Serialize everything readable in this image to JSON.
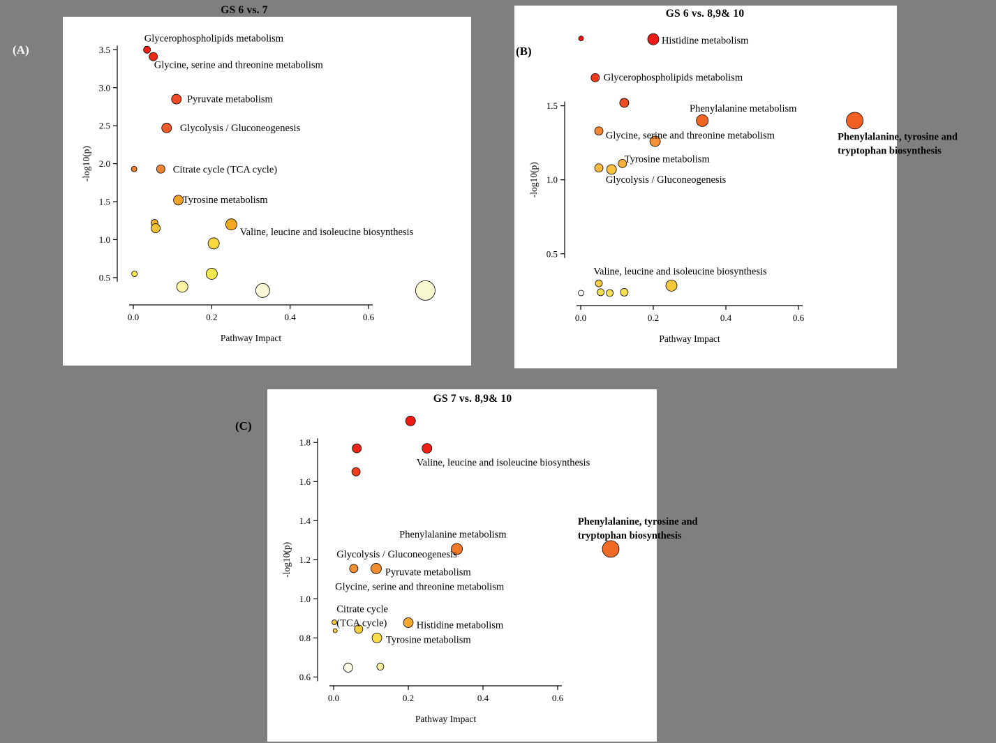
{
  "page": {
    "background": "#7f7f7f",
    "panel_background": "#ffffff",
    "point_stroke": "#000000"
  },
  "panel_labels": [
    {
      "text": "(A)",
      "color": "#ffffff"
    },
    {
      "text": "(B)",
      "color": "#000000"
    },
    {
      "text": "(C)",
      "color": "#000000"
    }
  ],
  "chart_data": [
    {
      "type": "scatter",
      "title": "GS 6 vs. 7",
      "xlabel": "Pathway Impact",
      "ylabel": "-log10(p)",
      "xlim": [
        0,
        0.6
      ],
      "ylim": [
        0.15,
        3.65
      ],
      "grid": false,
      "legend": "none",
      "xticks": {
        "values": [
          0.0,
          0.2,
          0.4,
          0.6
        ],
        "labels": [
          "0.0",
          "0.2",
          "0.4",
          "0.6"
        ]
      },
      "yticks": {
        "values": [
          0.5,
          1.0,
          1.5,
          2.0,
          2.5,
          3.0,
          3.5
        ],
        "labels": [
          "0.5",
          "1.0",
          "1.5",
          "2.0",
          "2.5",
          "3.0",
          "3.5"
        ]
      },
      "points": [
        {
          "x": 0.035,
          "y": 3.5,
          "r": 5,
          "color": "#ee2017",
          "label": "Glycerophospholipids metabolism"
        },
        {
          "x": 0.051,
          "y": 3.41,
          "r": 6,
          "color": "#ed2a14",
          "label": "Glycine, serine and threonine metabolism"
        },
        {
          "x": 0.11,
          "y": 2.85,
          "r": 7,
          "color": "#f04a24",
          "label": "Pyruvate metabolism"
        },
        {
          "x": 0.085,
          "y": 2.47,
          "r": 7,
          "color": "#f15c2a",
          "label": "Glycolysis / Gluconeogenesis"
        },
        {
          "x": 0.002,
          "y": 1.93,
          "r": 4,
          "color": "#ef8030",
          "label": ""
        },
        {
          "x": 0.07,
          "y": 1.93,
          "r": 6,
          "color": "#f08432",
          "label": "Citrate cycle (TCA cycle)"
        },
        {
          "x": 0.115,
          "y": 1.52,
          "r": 7,
          "color": "#f5a228",
          "label": "Tyrosine metabolism"
        },
        {
          "x": 0.054,
          "y": 1.22,
          "r": 5,
          "color": "#f4ae2a",
          "label": ""
        },
        {
          "x": 0.057,
          "y": 1.15,
          "r": 6.5,
          "color": "#f7c135",
          "label": ""
        },
        {
          "x": 0.25,
          "y": 1.2,
          "r": 8,
          "color": "#f2a81f",
          "label": "Valine, leucine and isoleucine biosynthesis"
        },
        {
          "x": 0.205,
          "y": 0.95,
          "r": 8,
          "color": "#f8d83c",
          "label": ""
        },
        {
          "x": 0.003,
          "y": 0.55,
          "r": 4,
          "color": "#f9e34a",
          "label": ""
        },
        {
          "x": 0.2,
          "y": 0.55,
          "r": 8,
          "color": "#f9e850",
          "label": ""
        },
        {
          "x": 0.125,
          "y": 0.38,
          "r": 8,
          "color": "#fdf3a5",
          "label": ""
        },
        {
          "x": 0.33,
          "y": 0.33,
          "r": 10,
          "color": "#fbf8d5",
          "label": ""
        },
        {
          "x": 0.745,
          "y": 0.33,
          "r": 14,
          "color": "#f7f7d0",
          "label": ""
        }
      ],
      "annotations": [
        {
          "lines": [
            "Glycerophospholipids metabolism"
          ],
          "x": 0.028,
          "y": 3.61
        },
        {
          "lines": [
            "Glycine, serine and threonine metabolism"
          ],
          "x": 0.053,
          "y": 3.26
        },
        {
          "lines": [
            "Pyruvate metabolism"
          ],
          "x": 0.137,
          "y": 2.81
        },
        {
          "lines": [
            "Glycolysis / Gluconeogenesis"
          ],
          "x": 0.119,
          "y": 2.43
        },
        {
          "lines": [
            "Citrate cycle (TCA cycle)"
          ],
          "x": 0.101,
          "y": 1.88
        },
        {
          "lines": [
            "Tyrosine metabolism"
          ],
          "x": 0.126,
          "y": 1.48
        },
        {
          "lines": [
            "Valine, leucine and isoleucine biosynthesis"
          ],
          "x": 0.272,
          "y": 1.06
        }
      ]
    },
    {
      "type": "scatter",
      "title": "GS 6 vs. 8,9& 10",
      "xlabel": "Pathway Impact",
      "ylabel": "-log10(p)",
      "xlim": [
        0,
        0.6
      ],
      "ylim": [
        0.15,
        2.05
      ],
      "grid": false,
      "legend": "none",
      "xticks": {
        "values": [
          0.0,
          0.2,
          0.4,
          0.6
        ],
        "labels": [
          "0.0",
          "0.2",
          "0.4",
          "0.6"
        ]
      },
      "yticks": {
        "values": [
          0.5,
          1.0,
          1.5
        ],
        "labels": [
          "0.5",
          "1.0",
          "1.5"
        ]
      },
      "points": [
        {
          "x": 0.001,
          "y": 1.955,
          "r": 3.5,
          "color": "#e81613",
          "label": ""
        },
        {
          "x": 0.2,
          "y": 1.95,
          "r": 8,
          "color": "#ea1c15",
          "label": "Histidine metabolism"
        },
        {
          "x": 0.04,
          "y": 1.69,
          "r": 6,
          "color": "#ee3a1c",
          "label": "Glycerophospholipids metabolism"
        },
        {
          "x": 0.12,
          "y": 1.52,
          "r": 6.5,
          "color": "#ef4c22",
          "label": ""
        },
        {
          "x": 0.335,
          "y": 1.4,
          "r": 8.5,
          "color": "#f26522",
          "label": "Phenylalanine metabolism"
        },
        {
          "x": 0.755,
          "y": 1.4,
          "r": 12,
          "color": "#f16021",
          "label": "Phenylalanine, tyrosine and tryptophan biosynthesis"
        },
        {
          "x": 0.05,
          "y": 1.33,
          "r": 6,
          "color": "#f28432",
          "label": ""
        },
        {
          "x": 0.205,
          "y": 1.26,
          "r": 7.5,
          "color": "#f29138",
          "label": "Glycine, serine and threonine metabolism"
        },
        {
          "x": 0.115,
          "y": 1.11,
          "r": 6,
          "color": "#f6b13a",
          "label": "Tyrosine metabolism"
        },
        {
          "x": 0.085,
          "y": 1.07,
          "r": 7,
          "color": "#f8bf40",
          "label": "Glycolysis / Gluconeogenesis"
        },
        {
          "x": 0.05,
          "y": 1.08,
          "r": 6,
          "color": "#f7ba3e",
          "label": ""
        },
        {
          "x": 0.05,
          "y": 0.3,
          "r": 5,
          "color": "#f7cd42",
          "label": ""
        },
        {
          "x": 0.25,
          "y": 0.285,
          "r": 8,
          "color": "#f6c93a",
          "label": "Valine, leucine and isoleucine biosynthesis"
        },
        {
          "x": 0.001,
          "y": 0.235,
          "r": 4,
          "color": "#ffffff",
          "label": ""
        },
        {
          "x": 0.055,
          "y": 0.24,
          "r": 5,
          "color": "#f9df52",
          "label": ""
        },
        {
          "x": 0.08,
          "y": 0.235,
          "r": 5,
          "color": "#f9e055",
          "label": ""
        },
        {
          "x": 0.12,
          "y": 0.24,
          "r": 5.5,
          "color": "#f9e052",
          "label": ""
        }
      ],
      "annotations": [
        {
          "lines": [
            "Histidine metabolism"
          ],
          "x": 0.223,
          "y": 1.92
        },
        {
          "lines": [
            "Glycerophospholipids metabolism"
          ],
          "x": 0.063,
          "y": 1.67
        },
        {
          "lines": [
            "Phenylalanine metabolism"
          ],
          "x": 0.3,
          "y": 1.46
        },
        {
          "lines": [
            "Glycine, serine and threonine metabolism"
          ],
          "x": 0.069,
          "y": 1.28
        },
        {
          "lines": [
            "Tyrosine metabolism"
          ],
          "x": 0.121,
          "y": 1.12
        },
        {
          "lines": [
            "Glycolysis / Gluconeogenesis"
          ],
          "x": 0.069,
          "y": 0.98
        },
        {
          "lines": [
            "Valine, leucine and isoleucine biosynthesis"
          ],
          "x": 0.035,
          "y": 0.36
        },
        {
          "lines": [
            "Phenylalanine, tyrosine and",
            "tryptophan biosynthesis"
          ],
          "x": 0.708,
          "y": 1.27,
          "bold": true
        }
      ]
    },
    {
      "type": "scatter",
      "title": "GS 7 vs. 8,9& 10",
      "xlabel": "Pathway Impact",
      "ylabel": "-log10(p)",
      "xlim": [
        0,
        0.6
      ],
      "ylim": [
        0.555,
        1.99
      ],
      "grid": false,
      "legend": "none",
      "xticks": {
        "values": [
          0.0,
          0.2,
          0.4,
          0.6
        ],
        "labels": [
          "0.0",
          "0.2",
          "0.4",
          "0.6"
        ]
      },
      "yticks": {
        "values": [
          0.6,
          0.8,
          1.0,
          1.2,
          1.4,
          1.6,
          1.8
        ],
        "labels": [
          "0.6",
          "0.8",
          "1.0",
          "1.2",
          "1.4",
          "1.6",
          "1.8"
        ]
      },
      "points": [
        {
          "x": 0.206,
          "y": 1.91,
          "r": 7,
          "color": "#ea1b14",
          "label": ""
        },
        {
          "x": 0.062,
          "y": 1.77,
          "r": 6.5,
          "color": "#ec2417",
          "label": ""
        },
        {
          "x": 0.25,
          "y": 1.77,
          "r": 7,
          "color": "#ec2014",
          "label": "Valine, leucine and isoleucine biosynthesis"
        },
        {
          "x": 0.06,
          "y": 1.65,
          "r": 6,
          "color": "#ee3b1e",
          "label": ""
        },
        {
          "x": 0.33,
          "y": 1.255,
          "r": 8,
          "color": "#f07828",
          "label": "Phenylalanine metabolism"
        },
        {
          "x": 0.742,
          "y": 1.255,
          "r": 12,
          "color": "#ef6a24",
          "label": "Phenylalanine, tyrosine and tryptophan biosynthesis"
        },
        {
          "x": 0.054,
          "y": 1.155,
          "r": 6,
          "color": "#f29134",
          "label": "Glycolysis / Gluconeogenesis"
        },
        {
          "x": 0.114,
          "y": 1.155,
          "r": 7.5,
          "color": "#f28c30",
          "label": "Pyruvate metabolism"
        },
        {
          "x": 0.002,
          "y": 0.88,
          "r": 3.5,
          "color": "#f6c33c",
          "label": "Citrate cycle (TCA cycle)"
        },
        {
          "x": 0.2,
          "y": 0.878,
          "r": 7,
          "color": "#f4a830",
          "label": "Histidine metabolism"
        },
        {
          "x": 0.067,
          "y": 0.845,
          "r": 6,
          "color": "#f7cb40",
          "label": ""
        },
        {
          "x": 0.004,
          "y": 0.837,
          "r": 3,
          "color": "#f8cf44",
          "label": ""
        },
        {
          "x": 0.116,
          "y": 0.8,
          "r": 7,
          "color": "#f9dd4e",
          "label": "Tyrosine metabolism"
        },
        {
          "x": 0.039,
          "y": 0.648,
          "r": 6.5,
          "color": "#fdfbe8",
          "label": ""
        },
        {
          "x": 0.125,
          "y": 0.653,
          "r": 5,
          "color": "#fcf3a2",
          "label": ""
        }
      ],
      "annotations": [
        {
          "lines": [
            "Valine, leucine and isoleucine biosynthesis"
          ],
          "x": 0.222,
          "y": 1.682
        },
        {
          "lines": [
            "Phenylalanine metabolism"
          ],
          "x": 0.176,
          "y": 1.314
        },
        {
          "lines": [
            "Phenylalanine, tyrosine and",
            "tryptophan biosynthesis"
          ],
          "x": 0.654,
          "y": 1.379,
          "bold": true
        },
        {
          "lines": [
            "Glycolysis / Gluconeogenesis"
          ],
          "x": 0.008,
          "y": 1.211
        },
        {
          "lines": [
            "Pyruvate metabolism"
          ],
          "x": 0.138,
          "y": 1.121
        },
        {
          "lines": [
            "Glycine, serine and threonine metabolism"
          ],
          "x": 0.004,
          "y": 1.046
        },
        {
          "lines": [
            "Citrate cycle",
            "(TCA cycle)"
          ],
          "x": 0.008,
          "y": 0.932
        },
        {
          "lines": [
            "Histidine metabolism"
          ],
          "x": 0.222,
          "y": 0.85
        },
        {
          "lines": [
            "Tyrosine metabolism"
          ],
          "x": 0.14,
          "y": 0.775
        }
      ]
    }
  ]
}
